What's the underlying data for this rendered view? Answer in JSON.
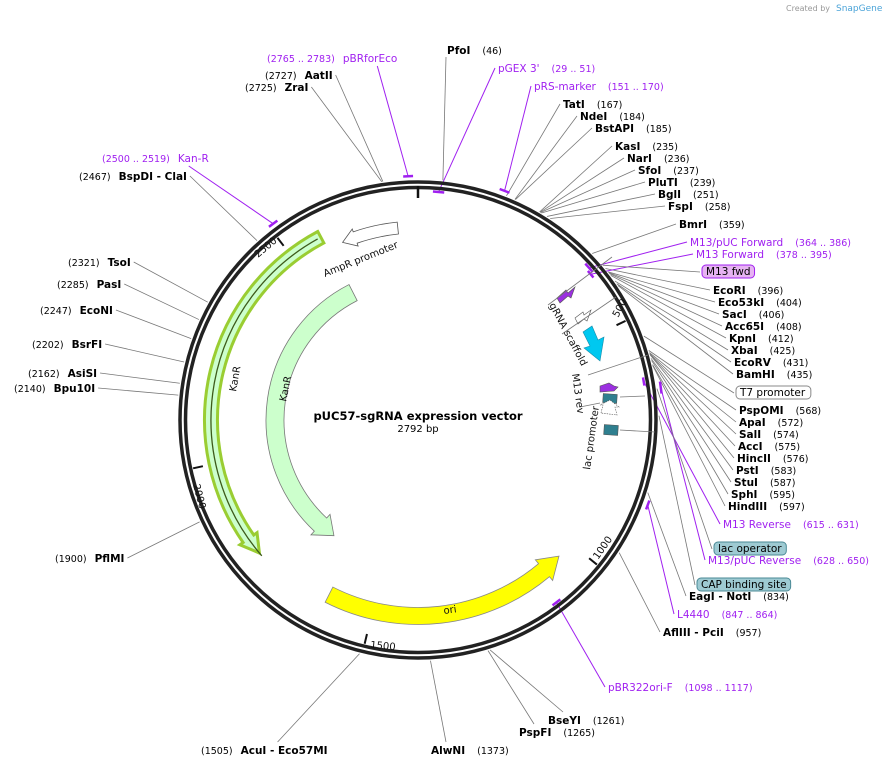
{
  "credit": {
    "prefix": "Created by",
    "brand": "SnapGene"
  },
  "plasmid": {
    "name": "pUC57-sgRNA expression vector",
    "length_label": "2792 bp",
    "length_bp": 2792
  },
  "ticks": [
    "500",
    "1000",
    "1500",
    "2000",
    "2500"
  ],
  "enzymes": [
    {
      "name": "PfoI",
      "pos": "(46)"
    },
    {
      "name": "TatI",
      "pos": "(167)"
    },
    {
      "name": "NdeI",
      "pos": "(184)"
    },
    {
      "name": "BstAPI",
      "pos": "(185)"
    },
    {
      "name": "KasI",
      "pos": "(235)"
    },
    {
      "name": "NarI",
      "pos": "(236)"
    },
    {
      "name": "SfoI",
      "pos": "(237)"
    },
    {
      "name": "PluTI",
      "pos": "(239)"
    },
    {
      "name": "BglI",
      "pos": "(251)"
    },
    {
      "name": "FspI",
      "pos": "(258)"
    },
    {
      "name": "BmrI",
      "pos": "(359)"
    },
    {
      "name": "EcoRI",
      "pos": "(396)"
    },
    {
      "name": "Eco53kI",
      "pos": "(404)"
    },
    {
      "name": "SacI",
      "pos": "(406)"
    },
    {
      "name": "Acc65I",
      "pos": "(408)"
    },
    {
      "name": "KpnI",
      "pos": "(412)"
    },
    {
      "name": "XbaI",
      "pos": "(425)"
    },
    {
      "name": "EcoRV",
      "pos": "(431)"
    },
    {
      "name": "BamHI",
      "pos": "(435)"
    },
    {
      "name": "PspOMI",
      "pos": "(568)"
    },
    {
      "name": "ApaI",
      "pos": "(572)"
    },
    {
      "name": "SalI",
      "pos": "(574)"
    },
    {
      "name": "AccI",
      "pos": "(575)"
    },
    {
      "name": "HincII",
      "pos": "(576)"
    },
    {
      "name": "PstI",
      "pos": "(583)"
    },
    {
      "name": "StuI",
      "pos": "(587)"
    },
    {
      "name": "SphI",
      "pos": "(595)"
    },
    {
      "name": "HindIII",
      "pos": "(597)"
    },
    {
      "name": "EagI  - NotI",
      "pos": "(834)"
    },
    {
      "name": "AflIII  - PciI",
      "pos": "(957)"
    },
    {
      "name": "BseYI",
      "pos": "(1261)"
    },
    {
      "name": "PspFI",
      "pos": "(1265)"
    },
    {
      "name": "AlwNI",
      "pos": "(1373)"
    },
    {
      "name": "AcuI  - Eco57MI",
      "pos": "(1505)"
    },
    {
      "name": "PflMI",
      "pos": "(1900)"
    },
    {
      "name": "Bpu10I",
      "pos": "(2140)"
    },
    {
      "name": "AsiSI",
      "pos": "(2162)"
    },
    {
      "name": "BsrFI",
      "pos": "(2202)"
    },
    {
      "name": "EcoNI",
      "pos": "(2247)"
    },
    {
      "name": "PasI",
      "pos": "(2285)"
    },
    {
      "name": "TsoI",
      "pos": "(2321)"
    },
    {
      "name": "BspDI  - ClaI",
      "pos": "(2467)"
    },
    {
      "name": "ZraI",
      "pos": "(2725)"
    },
    {
      "name": "AatII",
      "pos": "(2727)"
    }
  ],
  "primers": [
    {
      "name": "pBRforEco",
      "range": "(2765 .. 2783)"
    },
    {
      "name": "pGEX 3'",
      "range": "(29 .. 51)"
    },
    {
      "name": "pRS-marker",
      "range": "(151 .. 170)"
    },
    {
      "name": "Kan-R",
      "range": "(2500 .. 2519)"
    },
    {
      "name": "M13/pUC Forward",
      "range": "(364 .. 386)"
    },
    {
      "name": "M13 Forward",
      "range": "(378 .. 395)"
    },
    {
      "name": "M13 Reverse",
      "range": "(615 .. 631)"
    },
    {
      "name": "M13/pUC Reverse",
      "range": "(628 .. 650)"
    },
    {
      "name": "L4440",
      "range": "(847 .. 864)"
    },
    {
      "name": "pBR322ori-F",
      "range": "(1098 .. 1117)"
    }
  ],
  "boxed_features": [
    {
      "name": "M13 fwd",
      "fill": "#e6b3f2",
      "stroke": "#a020f0"
    },
    {
      "name": "T7 promoter",
      "fill": "#ffffff",
      "stroke": "#888888"
    },
    {
      "name": "lac operator",
      "fill": "#9ecad2",
      "stroke": "#4a8a96"
    },
    {
      "name": "CAP binding site",
      "fill": "#9ecad2",
      "stroke": "#4a8a96"
    }
  ],
  "map_features": {
    "ampr_promoter": "AmpR promoter",
    "kanr_outer": "KanR",
    "kanr_inner": "KanR",
    "ori": "ori",
    "grna_scaffold": "gRNA scaffold",
    "m13_rev": "M13 rev",
    "lac_promoter": "lac promoter"
  },
  "colors": {
    "primer": "#a020f0",
    "kanr": "#ccffcc",
    "ori": "#ffff00",
    "grna": "#00c8f0",
    "lac": "#2f7f8f",
    "ring": "#222222"
  }
}
